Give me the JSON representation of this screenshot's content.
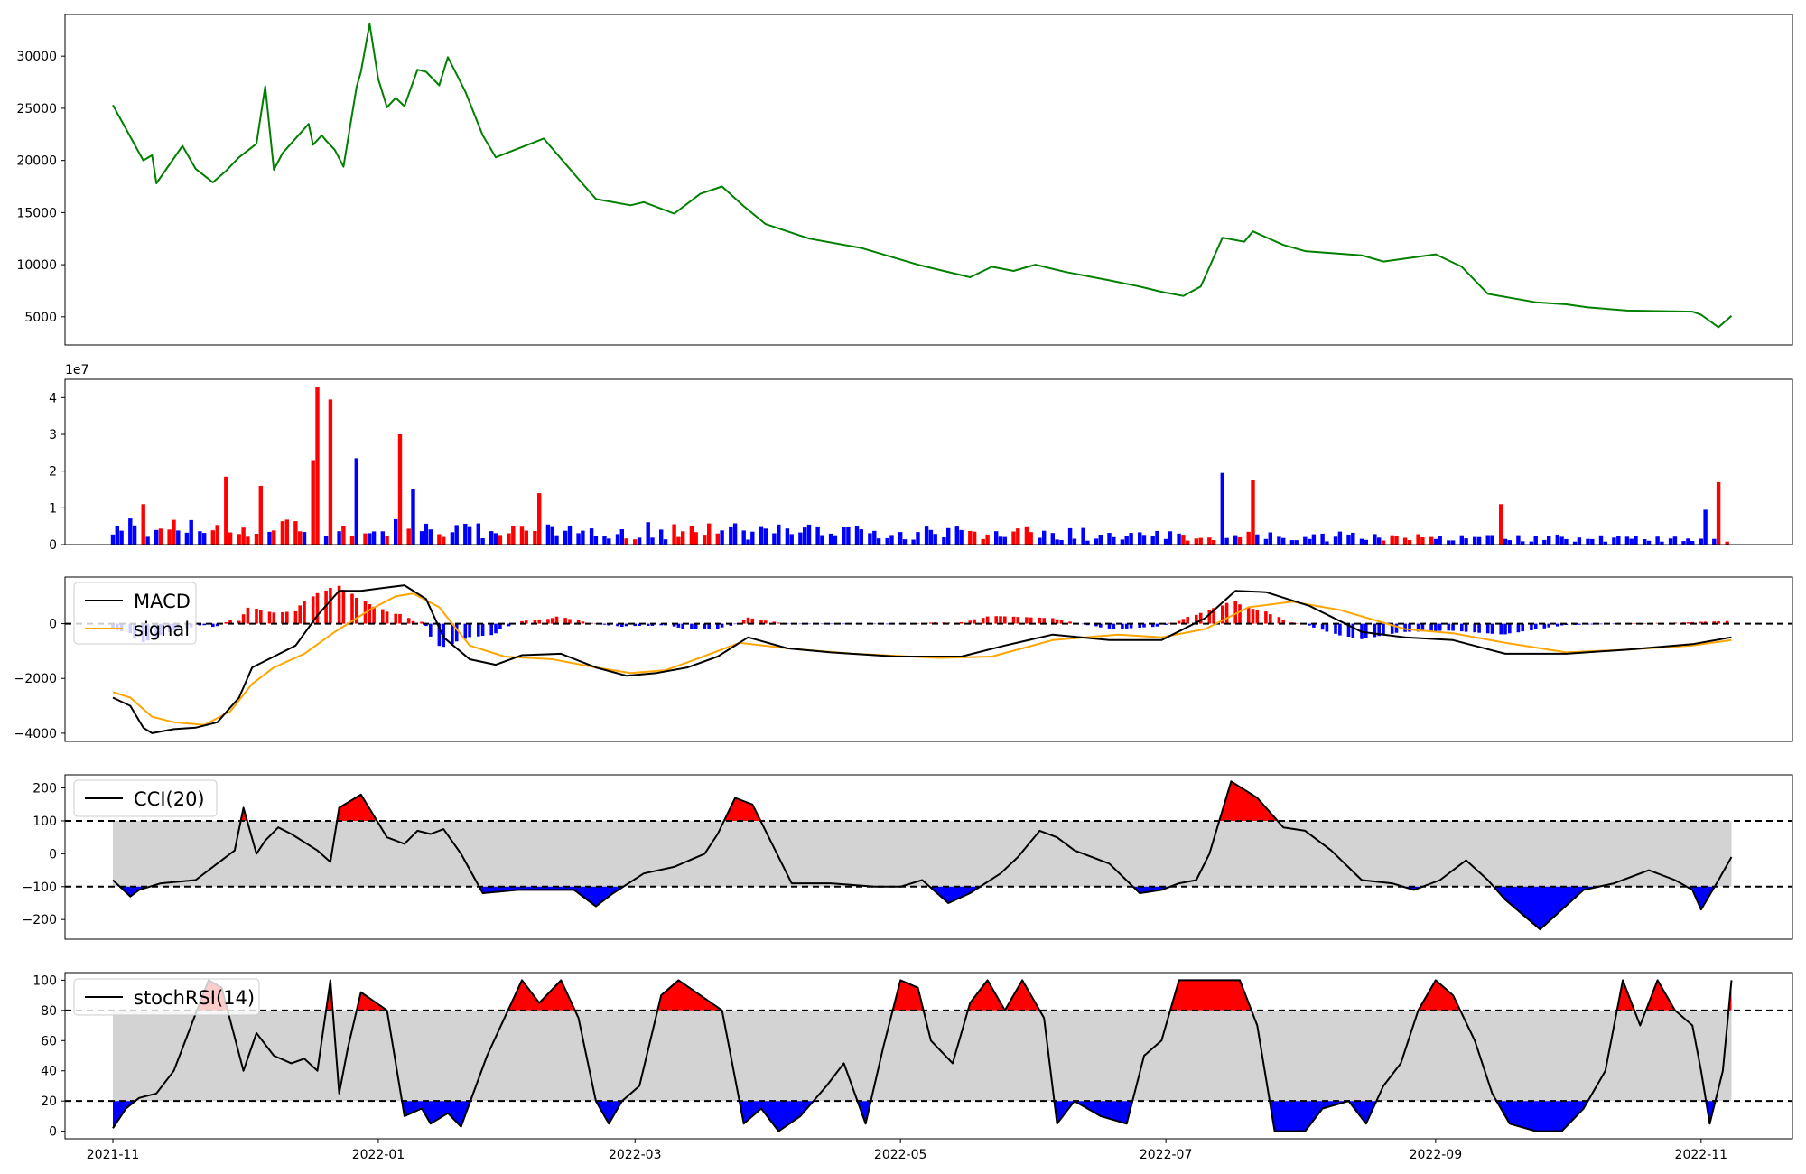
{
  "figure": {
    "x_ticks": [
      "2021-11",
      "2022-01",
      "2022-03",
      "2022-05",
      "2022-07",
      "2022-09",
      "2022-11"
    ],
    "x_range": [
      "2021-10-21",
      "2022-11-22"
    ],
    "data_range": [
      "2021-11-01",
      "2022-11-08"
    ]
  },
  "chart_data": [
    {
      "type": "line",
      "name": "price",
      "color": "#008000",
      "yticks": [
        "5000",
        "10000",
        "15000",
        "20000",
        "25000",
        "30000"
      ],
      "ylim": [
        2300,
        34000
      ],
      "x": [
        "2021-11-01",
        "2021-11-08",
        "2021-11-10",
        "2021-11-11",
        "2021-11-17",
        "2021-11-20",
        "2021-11-24",
        "2021-11-27",
        "2021-11-30",
        "2021-12-04",
        "2021-12-06",
        "2021-12-08",
        "2021-12-10",
        "2021-12-16",
        "2021-12-17",
        "2021-12-19",
        "2021-12-20",
        "2021-12-22",
        "2021-12-24",
        "2021-12-27",
        "2021-12-28",
        "2021-12-30",
        "2022-01-01",
        "2022-01-03",
        "2022-01-05",
        "2022-01-07",
        "2022-01-10",
        "2022-01-12",
        "2022-01-15",
        "2022-01-17",
        "2022-01-21",
        "2022-01-25",
        "2022-01-28",
        "2022-02-08",
        "2022-02-15",
        "2022-02-20",
        "2022-02-28",
        "2022-03-03",
        "2022-03-10",
        "2022-03-16",
        "2022-03-21",
        "2022-03-26",
        "2022-03-31",
        "2022-04-10",
        "2022-04-22",
        "2022-05-05",
        "2022-05-17",
        "2022-05-22",
        "2022-05-27",
        "2022-06-01",
        "2022-06-08",
        "2022-06-18",
        "2022-06-25",
        "2022-06-30",
        "2022-07-05",
        "2022-07-09",
        "2022-07-14",
        "2022-07-19",
        "2022-07-21",
        "2022-07-28",
        "2022-08-02",
        "2022-08-15",
        "2022-08-20",
        "2022-09-01",
        "2022-09-07",
        "2022-09-13",
        "2022-09-24",
        "2022-10-01",
        "2022-10-06",
        "2022-10-15",
        "2022-10-30",
        "2022-11-01",
        "2022-11-05",
        "2022-11-08"
      ],
      "y": [
        25300,
        20000,
        20500,
        17800,
        21400,
        19200,
        17900,
        19000,
        20300,
        21600,
        27100,
        19100,
        20700,
        23500,
        21500,
        22400,
        21900,
        21000,
        19400,
        27000,
        28500,
        33100,
        27800,
        25100,
        26000,
        25200,
        28700,
        28500,
        27200,
        29900,
        26600,
        22400,
        20300,
        22100,
        18700,
        16300,
        15700,
        16000,
        14900,
        16800,
        17500,
        15600,
        13900,
        12500,
        11600,
        10000,
        8800,
        9800,
        9400,
        10000,
        9300,
        8500,
        7900,
        7400,
        7000,
        7900,
        12600,
        12200,
        13200,
        11900,
        11300,
        10900,
        10300,
        11000,
        9800,
        7200,
        6400,
        6200,
        5900,
        5600,
        5500,
        5200,
        4000,
        5100
      ]
    },
    {
      "type": "bar",
      "name": "volume",
      "offset_text": "1e7",
      "yticks": [
        "0",
        "1",
        "2",
        "3",
        "4"
      ],
      "ylim": [
        0,
        4.5
      ],
      "colors": {
        "up": "#ff0000",
        "down": "#0000ff"
      },
      "peaks": [
        {
          "date": "2021-11-08",
          "value": 1.1,
          "dir": "up"
        },
        {
          "date": "2021-11-27",
          "value": 1.85,
          "dir": "up"
        },
        {
          "date": "2021-12-06",
          "value": 1.6,
          "dir": "up"
        },
        {
          "date": "2021-12-17",
          "value": 2.3,
          "dir": "up"
        },
        {
          "date": "2021-12-19",
          "value": 4.3,
          "dir": "up"
        },
        {
          "date": "2021-12-22",
          "value": 3.95,
          "dir": "up"
        },
        {
          "date": "2021-12-27",
          "value": 2.35,
          "dir": "down"
        },
        {
          "date": "2022-01-07",
          "value": 3.0,
          "dir": "up"
        },
        {
          "date": "2022-01-09",
          "value": 1.5,
          "dir": "down"
        },
        {
          "date": "2022-02-08",
          "value": 1.4,
          "dir": "up"
        },
        {
          "date": "2022-07-14",
          "value": 1.95,
          "dir": "down"
        },
        {
          "date": "2022-07-21",
          "value": 1.75,
          "dir": "up"
        },
        {
          "date": "2022-09-16",
          "value": 1.1,
          "dir": "up"
        },
        {
          "date": "2022-11-02",
          "value": 0.95,
          "dir": "down"
        },
        {
          "date": "2022-11-05",
          "value": 1.7,
          "dir": "up"
        }
      ]
    },
    {
      "type": "line",
      "name": "macd-panel",
      "yticks": [
        "−4000",
        "−2000",
        "0"
      ],
      "ylim": [
        -4300,
        1700
      ],
      "series": [
        {
          "name": "MACD",
          "color": "#000000",
          "x": [
            "2021-11-01",
            "2021-11-05",
            "2021-11-08",
            "2021-11-10",
            "2021-11-15",
            "2021-11-20",
            "2021-11-25",
            "2021-11-30",
            "2021-12-03",
            "2021-12-08",
            "2021-12-13",
            "2021-12-18",
            "2021-12-23",
            "2021-12-28",
            "2022-01-02",
            "2022-01-07",
            "2022-01-12",
            "2022-01-16",
            "2022-01-22",
            "2022-01-28",
            "2022-02-03",
            "2022-02-12",
            "2022-02-20",
            "2022-02-27",
            "2022-03-06",
            "2022-03-13",
            "2022-03-20",
            "2022-03-27",
            "2022-04-05",
            "2022-04-15",
            "2022-04-30",
            "2022-05-15",
            "2022-05-25",
            "2022-06-05",
            "2022-06-18",
            "2022-06-30",
            "2022-07-10",
            "2022-07-17",
            "2022-07-24",
            "2022-08-03",
            "2022-08-15",
            "2022-08-25",
            "2022-09-05",
            "2022-09-17",
            "2022-10-01",
            "2022-10-15",
            "2022-10-30",
            "2022-11-08"
          ],
          "y": [
            -2700,
            -3000,
            -3800,
            -4000,
            -3850,
            -3800,
            -3600,
            -2700,
            -1600,
            -1200,
            -800,
            300,
            1200,
            1200,
            1300,
            1400,
            900,
            -500,
            -1300,
            -1500,
            -1150,
            -1100,
            -1600,
            -1900,
            -1800,
            -1600,
            -1200,
            -500,
            -900,
            -1050,
            -1200,
            -1200,
            -800,
            -400,
            -600,
            -600,
            200,
            1200,
            1150,
            650,
            -300,
            -500,
            -600,
            -1100,
            -1100,
            -950,
            -750,
            -500
          ]
        },
        {
          "name": "signal",
          "color": "#ffa500",
          "x": [
            "2021-11-01",
            "2021-11-05",
            "2021-11-10",
            "2021-11-15",
            "2021-11-22",
            "2021-11-28",
            "2021-12-03",
            "2021-12-08",
            "2021-12-15",
            "2021-12-22",
            "2021-12-30",
            "2022-01-05",
            "2022-01-09",
            "2022-01-15",
            "2022-01-22",
            "2022-01-30",
            "2022-02-10",
            "2022-02-20",
            "2022-02-28",
            "2022-03-08",
            "2022-03-15",
            "2022-03-25",
            "2022-04-05",
            "2022-04-20",
            "2022-05-10",
            "2022-05-22",
            "2022-06-05",
            "2022-06-20",
            "2022-06-30",
            "2022-07-10",
            "2022-07-20",
            "2022-07-30",
            "2022-08-10",
            "2022-08-25",
            "2022-09-05",
            "2022-09-17",
            "2022-10-01",
            "2022-10-15",
            "2022-10-30",
            "2022-11-08"
          ],
          "y": [
            -2500,
            -2700,
            -3400,
            -3600,
            -3700,
            -3200,
            -2200,
            -1600,
            -1100,
            -300,
            500,
            1000,
            1100,
            600,
            -800,
            -1200,
            -1300,
            -1600,
            -1800,
            -1700,
            -1300,
            -700,
            -900,
            -1100,
            -1250,
            -1200,
            -600,
            -400,
            -500,
            -200,
            600,
            800,
            500,
            -200,
            -350,
            -700,
            -1050,
            -950,
            -800,
            -600
          ]
        }
      ]
    },
    {
      "type": "area",
      "name": "cci-panel",
      "yticks": [
        "−200",
        "−100",
        "0",
        "100",
        "200"
      ],
      "ylim": [
        -260,
        240
      ],
      "series": [
        {
          "name": "CCI(20)",
          "color": "#000000",
          "x": [
            "2021-11-01",
            "2021-11-05",
            "2021-11-07",
            "2021-11-12",
            "2021-11-20",
            "2021-11-26",
            "2021-11-29",
            "2021-12-01",
            "2021-12-04",
            "2021-12-06",
            "2021-12-09",
            "2021-12-12",
            "2021-12-18",
            "2021-12-21",
            "2021-12-23",
            "2021-12-28",
            "2022-01-03",
            "2022-01-07",
            "2022-01-10",
            "2022-01-13",
            "2022-01-16",
            "2022-01-20",
            "2022-01-25",
            "2022-01-29",
            "2022-02-02",
            "2022-02-15",
            "2022-02-20",
            "2022-02-24",
            "2022-03-03",
            "2022-03-10",
            "2022-03-17",
            "2022-03-20",
            "2022-03-24",
            "2022-03-28",
            "2022-04-06",
            "2022-04-15",
            "2022-04-25",
            "2022-05-01",
            "2022-05-06",
            "2022-05-12",
            "2022-05-17",
            "2022-05-24",
            "2022-05-28",
            "2022-06-02",
            "2022-06-06",
            "2022-06-10",
            "2022-06-18",
            "2022-06-25",
            "2022-06-30",
            "2022-07-04",
            "2022-07-08",
            "2022-07-11",
            "2022-07-16",
            "2022-07-22",
            "2022-07-28",
            "2022-08-02",
            "2022-08-08",
            "2022-08-15",
            "2022-08-22",
            "2022-08-27",
            "2022-09-02",
            "2022-09-08",
            "2022-09-13",
            "2022-09-17",
            "2022-09-25",
            "2022-10-05",
            "2022-10-12",
            "2022-10-16",
            "2022-10-20",
            "2022-10-26",
            "2022-10-30",
            "2022-11-01",
            "2022-11-05",
            "2022-11-08"
          ],
          "y": [
            -80,
            -130,
            -110,
            -90,
            -80,
            -20,
            10,
            140,
            0,
            40,
            80,
            60,
            10,
            -25,
            140,
            180,
            50,
            30,
            70,
            60,
            75,
            0,
            -120,
            -115,
            -110,
            -110,
            -160,
            -120,
            -60,
            -40,
            0,
            60,
            170,
            150,
            -90,
            -90,
            -100,
            -100,
            -80,
            -150,
            -120,
            -60,
            -10,
            70,
            50,
            10,
            -30,
            -120,
            -110,
            -90,
            -80,
            0,
            220,
            170,
            80,
            70,
            10,
            -80,
            -90,
            -110,
            -80,
            -20,
            -80,
            -140,
            -230,
            -110,
            -90,
            -70,
            -50,
            -80,
            -110,
            -170,
            -80,
            -10
          ]
        }
      ]
    },
    {
      "type": "area",
      "name": "stochrsi-panel",
      "yticks": [
        "0",
        "20",
        "40",
        "60",
        "80",
        "100"
      ],
      "ylim": [
        -5,
        105
      ],
      "series": [
        {
          "name": "stochRSI(14)",
          "color": "#000000",
          "x": [
            "2021-11-01",
            "2021-11-04",
            "2021-11-07",
            "2021-11-11",
            "2021-11-15",
            "2021-11-19",
            "2021-11-23",
            "2021-11-26",
            "2021-12-01",
            "2021-12-04",
            "2021-12-08",
            "2021-12-12",
            "2021-12-15",
            "2021-12-18",
            "2021-12-21",
            "2021-12-23",
            "2021-12-25",
            "2021-12-28",
            "2022-01-03",
            "2022-01-07",
            "2022-01-11",
            "2022-01-13",
            "2022-01-17",
            "2022-01-20",
            "2022-01-26",
            "2022-01-30",
            "2022-02-03",
            "2022-02-07",
            "2022-02-12",
            "2022-02-16",
            "2022-02-20",
            "2022-02-23",
            "2022-02-26",
            "2022-03-02",
            "2022-03-07",
            "2022-03-11",
            "2022-03-16",
            "2022-03-21",
            "2022-03-26",
            "2022-03-30",
            "2022-04-03",
            "2022-04-08",
            "2022-04-14",
            "2022-04-18",
            "2022-04-23",
            "2022-04-27",
            "2022-05-01",
            "2022-05-05",
            "2022-05-08",
            "2022-05-13",
            "2022-05-17",
            "2022-05-21",
            "2022-05-25",
            "2022-05-29",
            "2022-06-03",
            "2022-06-06",
            "2022-06-10",
            "2022-06-16",
            "2022-06-22",
            "2022-06-26",
            "2022-06-30",
            "2022-07-04",
            "2022-07-08",
            "2022-07-18",
            "2022-07-22",
            "2022-07-26",
            "2022-08-02",
            "2022-08-06",
            "2022-08-12",
            "2022-08-16",
            "2022-08-20",
            "2022-08-24",
            "2022-08-28",
            "2022-09-01",
            "2022-09-05",
            "2022-09-10",
            "2022-09-14",
            "2022-09-18",
            "2022-09-24",
            "2022-09-30",
            "2022-10-05",
            "2022-10-10",
            "2022-10-14",
            "2022-10-18",
            "2022-10-22",
            "2022-10-26",
            "2022-10-30",
            "2022-11-01",
            "2022-11-03",
            "2022-11-06",
            "2022-11-08"
          ],
          "y": [
            2,
            15,
            22,
            25,
            40,
            70,
            100,
            95,
            40,
            65,
            50,
            45,
            48,
            40,
            100,
            25,
            55,
            92,
            80,
            10,
            15,
            5,
            12,
            3,
            50,
            75,
            100,
            85,
            100,
            75,
            20,
            5,
            20,
            30,
            90,
            100,
            90,
            80,
            5,
            15,
            0,
            10,
            30,
            45,
            5,
            55,
            100,
            95,
            60,
            45,
            85,
            100,
            80,
            100,
            75,
            5,
            20,
            10,
            5,
            50,
            60,
            100,
            100,
            100,
            70,
            0,
            0,
            15,
            20,
            5,
            30,
            45,
            80,
            100,
            90,
            60,
            25,
            5,
            0,
            0,
            15,
            40,
            100,
            70,
            100,
            80,
            70,
            40,
            5,
            40,
            100
          ]
        }
      ]
    }
  ],
  "legend": {
    "macd": "MACD",
    "signal": "signal",
    "cci": "CCI(20)",
    "stochrsi": "stochRSI(14)"
  }
}
